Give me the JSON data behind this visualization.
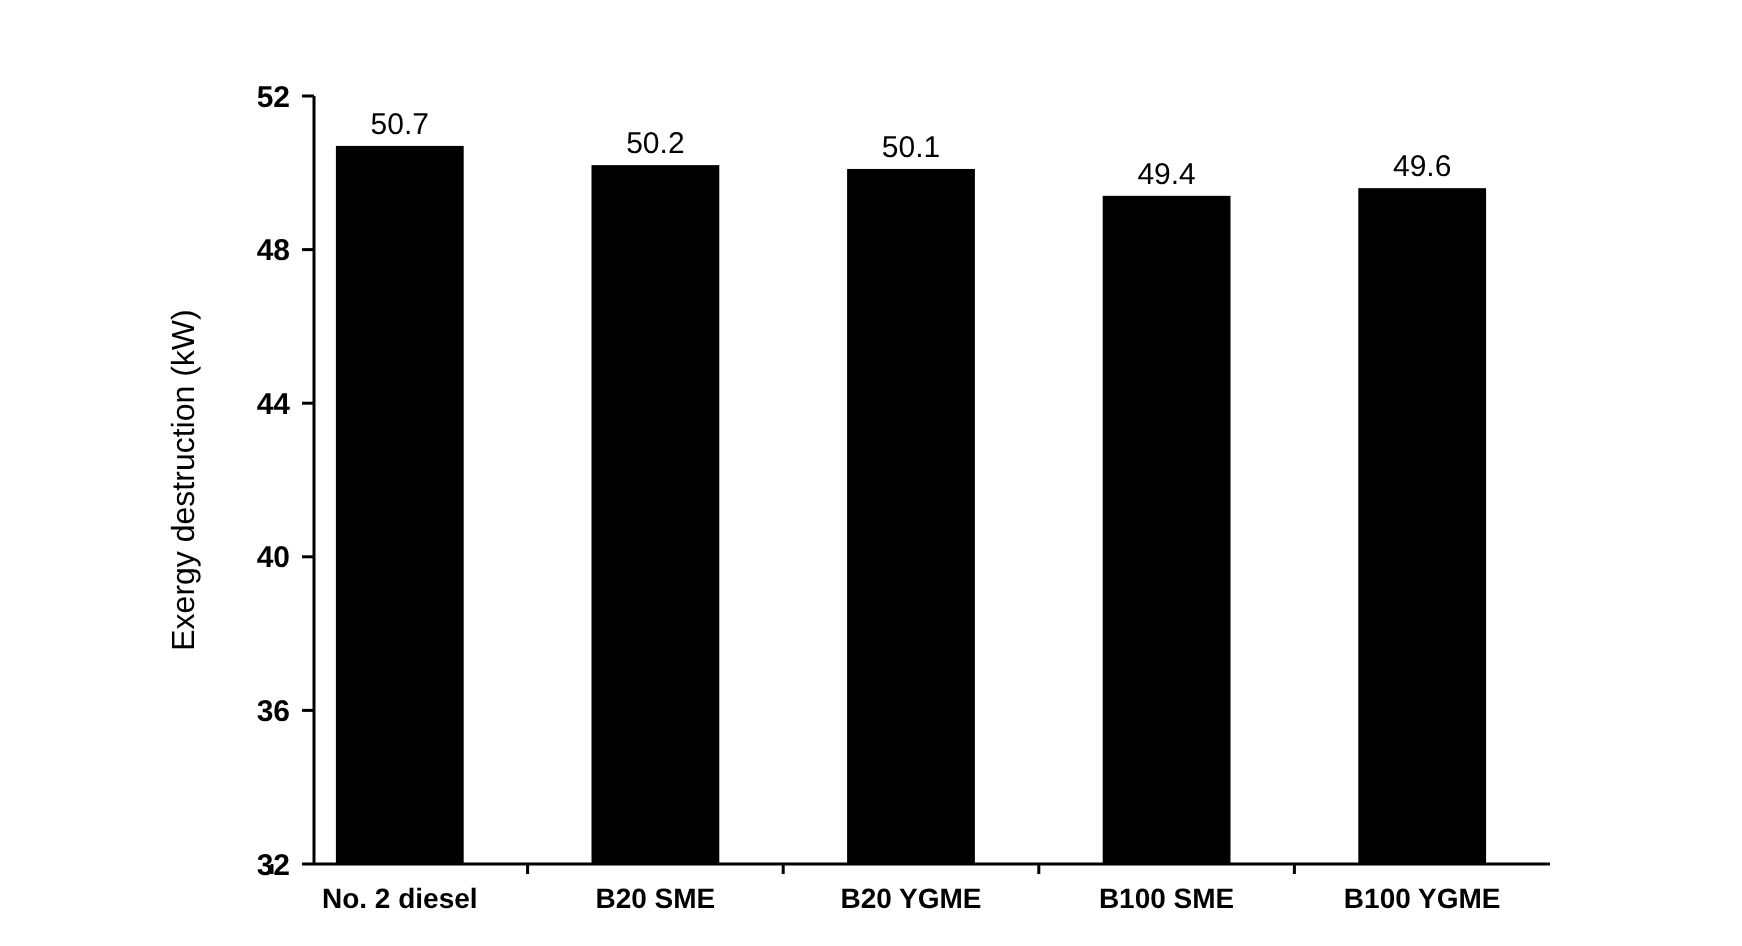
{
  "chart_data": {
    "type": "bar",
    "ylabel": "Exergy destruction (kW)",
    "categories": [
      "No. 2 diesel",
      "B20 SME",
      "B20 YGME",
      "B100 SME",
      "B100 YGME"
    ],
    "values": [
      50.7,
      50.2,
      50.1,
      49.4,
      49.6
    ],
    "color": "#000000",
    "ylim": [
      32,
      52
    ],
    "yticks": [
      32,
      36,
      40,
      44,
      48,
      52
    ],
    "data_labels": true
  }
}
